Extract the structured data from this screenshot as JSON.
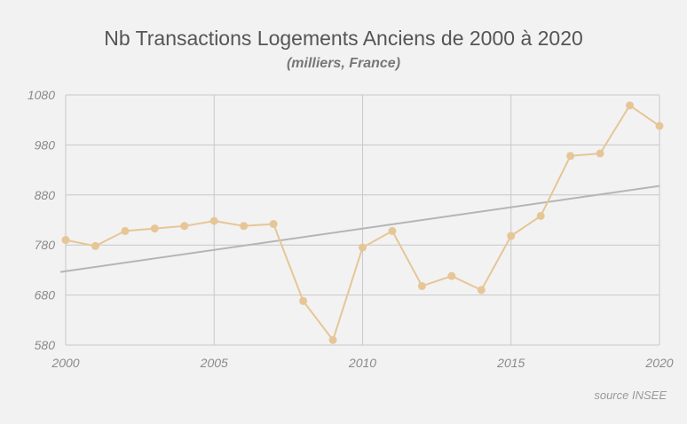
{
  "chart_data": {
    "type": "line",
    "title": "Nb Transactions Logements Anciens de 2000 à 2020",
    "subtitle": "(milliers, France)",
    "source": "source INSEE",
    "x": [
      2000,
      2001,
      2002,
      2003,
      2004,
      2005,
      2006,
      2007,
      2008,
      2009,
      2010,
      2011,
      2012,
      2013,
      2014,
      2015,
      2016,
      2017,
      2018,
      2019,
      2020
    ],
    "series": [
      {
        "values": [
          790,
          778,
          808,
          813,
          818,
          828,
          818,
          822,
          668,
          590,
          775,
          808,
          698,
          718,
          690,
          798,
          838,
          958,
          963,
          1059,
          1018
        ],
        "color": "#e6c697"
      }
    ],
    "trendline": {
      "x": [
        2000,
        2020
      ],
      "y": [
        727,
        898
      ],
      "color": "#b5b5b5"
    },
    "xlim": [
      2000,
      2020
    ],
    "ylim": [
      580,
      1080
    ],
    "xticks": [
      2000,
      2005,
      2010,
      2015,
      2020
    ],
    "yticks": [
      580,
      680,
      780,
      880,
      980,
      1080
    ],
    "grid": true
  }
}
